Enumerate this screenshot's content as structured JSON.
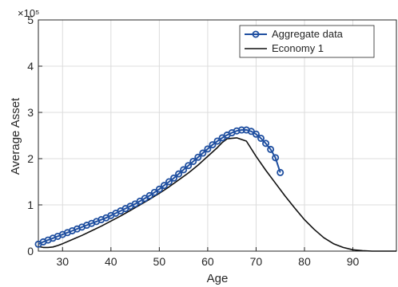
{
  "chart_data": {
    "type": "line",
    "title": "",
    "xlabel": "Age",
    "ylabel": "Average Asset",
    "xlim": [
      25,
      99
    ],
    "ylim": [
      0,
      5
    ],
    "y_multiplier_label": "×10⁵",
    "x_ticks": [
      "30",
      "40",
      "50",
      "60",
      "70",
      "80",
      "90"
    ],
    "y_ticks": [
      "0",
      "1",
      "2",
      "3",
      "4",
      "5"
    ],
    "grid": true,
    "legend_position": "top-right",
    "series": [
      {
        "name": "Aggregate data",
        "color": "#1f4fa0",
        "marker": "circle",
        "x": [
          25,
          26,
          27,
          28,
          29,
          30,
          31,
          32,
          33,
          34,
          35,
          36,
          37,
          38,
          39,
          40,
          41,
          42,
          43,
          44,
          45,
          46,
          47,
          48,
          49,
          50,
          51,
          52,
          53,
          54,
          55,
          56,
          57,
          58,
          59,
          60,
          61,
          62,
          63,
          64,
          65,
          66,
          67,
          68,
          69,
          70,
          71,
          72,
          73,
          74,
          75
        ],
        "y": [
          0.15,
          0.2,
          0.24,
          0.28,
          0.32,
          0.36,
          0.4,
          0.44,
          0.48,
          0.52,
          0.56,
          0.6,
          0.64,
          0.68,
          0.72,
          0.77,
          0.82,
          0.87,
          0.92,
          0.97,
          1.02,
          1.08,
          1.14,
          1.2,
          1.27,
          1.34,
          1.42,
          1.5,
          1.58,
          1.67,
          1.76,
          1.85,
          1.94,
          2.03,
          2.12,
          2.21,
          2.3,
          2.38,
          2.45,
          2.51,
          2.56,
          2.6,
          2.62,
          2.62,
          2.59,
          2.53,
          2.44,
          2.33,
          2.2,
          2.02,
          1.7
        ]
      },
      {
        "name": "Economy 1",
        "color": "#111111",
        "marker": "none",
        "x": [
          25,
          26,
          27,
          28,
          29,
          30,
          32,
          34,
          36,
          38,
          40,
          42,
          44,
          46,
          48,
          50,
          52,
          54,
          56,
          58,
          60,
          62,
          63,
          64,
          66,
          68,
          70,
          72,
          74,
          76,
          78,
          80,
          82,
          84,
          86,
          88,
          90,
          92,
          94,
          96,
          99
        ],
        "y": [
          0.1,
          0.08,
          0.08,
          0.09,
          0.12,
          0.16,
          0.25,
          0.34,
          0.44,
          0.54,
          0.65,
          0.76,
          0.88,
          1.0,
          1.12,
          1.25,
          1.39,
          1.54,
          1.69,
          1.86,
          2.05,
          2.24,
          2.35,
          2.43,
          2.45,
          2.38,
          2.05,
          1.75,
          1.47,
          1.19,
          0.93,
          0.68,
          0.47,
          0.29,
          0.16,
          0.08,
          0.03,
          0.01,
          0.0,
          0.0,
          0.0
        ]
      }
    ]
  }
}
